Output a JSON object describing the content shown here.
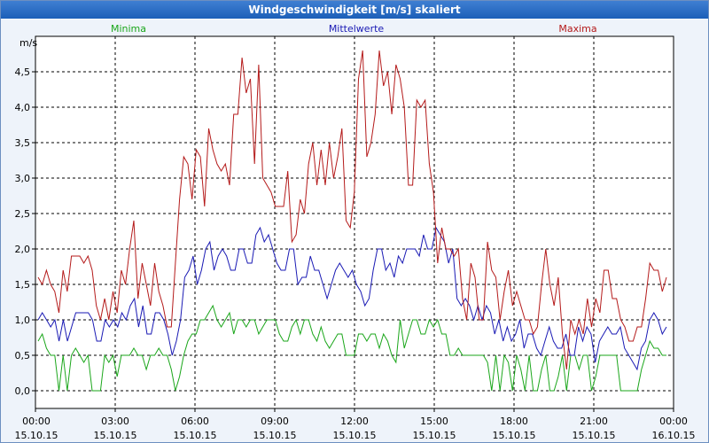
{
  "window": {
    "title": "Windgeschwindigkeit [m/s] skaliert"
  },
  "chart_data": {
    "type": "line",
    "title": "Windgeschwindigkeit [m/s] skaliert",
    "ylabel": "m/s",
    "ylim": [
      -0.25,
      5.0
    ],
    "xlim_hours": [
      0,
      24
    ],
    "y_ticks": [
      "0,0",
      "0,5",
      "1,0",
      "1,5",
      "2,0",
      "2,5",
      "3,0",
      "3,5",
      "4,0",
      "4,5"
    ],
    "x_ticks": [
      {
        "time": "00:00",
        "date": "15.10.15"
      },
      {
        "time": "03:00",
        "date": "15.10.15"
      },
      {
        "time": "06:00",
        "date": "15.10.15"
      },
      {
        "time": "09:00",
        "date": "15.10.15"
      },
      {
        "time": "12:00",
        "date": "15.10.15"
      },
      {
        "time": "15:00",
        "date": "15.10.15"
      },
      {
        "time": "18:00",
        "date": "15.10.15"
      },
      {
        "time": "21:00",
        "date": "15.10.15"
      },
      {
        "time": "00:00",
        "date": "16.10.15"
      }
    ],
    "grid": true,
    "series": [
      {
        "name": "Minima",
        "color": "#1aa61a",
        "values": [
          0.7,
          0.8,
          0.6,
          0.5,
          0.5,
          0.0,
          0.5,
          0.0,
          0.5,
          0.6,
          0.5,
          0.4,
          0.5,
          0.0,
          0.0,
          0.0,
          0.5,
          0.4,
          0.5,
          0.2,
          0.5,
          0.5,
          0.5,
          0.6,
          0.5,
          0.5,
          0.3,
          0.5,
          0.5,
          0.6,
          0.5,
          0.5,
          0.3,
          0.0,
          0.2,
          0.5,
          0.7,
          0.8,
          0.8,
          1.0,
          1.0,
          1.1,
          1.2,
          1.0,
          0.9,
          1.0,
          1.1,
          0.8,
          1.0,
          1.0,
          0.9,
          1.0,
          1.0,
          0.8,
          0.9,
          1.0,
          1.0,
          1.0,
          0.8,
          0.7,
          0.7,
          0.9,
          1.0,
          0.8,
          1.0,
          1.0,
          0.8,
          0.7,
          0.9,
          0.7,
          0.6,
          0.7,
          0.8,
          0.8,
          0.5,
          0.5,
          0.5,
          0.8,
          0.8,
          0.7,
          0.8,
          0.8,
          0.6,
          0.8,
          0.7,
          0.5,
          0.4,
          1.0,
          0.6,
          0.8,
          1.0,
          1.0,
          0.8,
          0.8,
          1.0,
          0.9,
          1.0,
          0.8,
          0.8,
          0.5,
          0.5,
          0.6,
          0.5,
          0.5,
          0.5,
          0.5,
          0.5,
          0.5,
          0.4,
          0.0,
          0.5,
          0.0,
          0.5,
          0.4,
          0.0,
          0.5,
          0.3,
          0.0,
          0.5,
          0.0,
          0.0,
          0.3,
          0.5,
          0.0,
          0.0,
          0.2,
          0.5,
          0.0,
          0.5,
          0.5,
          0.3,
          0.5,
          0.5,
          0.0,
          0.2,
          0.5,
          0.5,
          0.5,
          0.5,
          0.5,
          0.0,
          0.0,
          0.0,
          0.0,
          0.0,
          0.3,
          0.5,
          0.7,
          0.6,
          0.6,
          0.5,
          0.5
        ]
      },
      {
        "name": "Mittelwerte",
        "color": "#1a1ab4",
        "values": [
          1.0,
          1.1,
          1.0,
          0.9,
          1.0,
          0.7,
          1.0,
          0.7,
          0.9,
          1.1,
          1.1,
          1.1,
          1.1,
          1.0,
          0.7,
          0.7,
          1.0,
          0.9,
          1.0,
          0.9,
          1.1,
          1.0,
          1.2,
          1.3,
          0.9,
          1.2,
          0.8,
          0.8,
          1.1,
          1.1,
          1.0,
          0.8,
          0.5,
          0.7,
          1.0,
          1.6,
          1.7,
          1.9,
          1.5,
          1.7,
          2.0,
          2.1,
          1.7,
          1.9,
          2.0,
          1.9,
          1.7,
          1.7,
          2.0,
          2.0,
          1.8,
          1.8,
          2.2,
          2.3,
          2.1,
          2.2,
          2.0,
          1.8,
          1.7,
          1.7,
          2.0,
          2.0,
          1.5,
          1.6,
          1.6,
          1.9,
          1.7,
          1.7,
          1.5,
          1.3,
          1.5,
          1.7,
          1.8,
          1.7,
          1.6,
          1.7,
          1.5,
          1.4,
          1.2,
          1.3,
          1.7,
          2.0,
          2.0,
          1.7,
          1.8,
          1.6,
          1.9,
          1.8,
          2.0,
          2.0,
          2.0,
          1.9,
          2.2,
          2.0,
          2.0,
          2.3,
          2.2,
          2.1,
          1.8,
          2.0,
          1.3,
          1.2,
          1.3,
          1.2,
          1.0,
          1.2,
          1.0,
          1.2,
          1.1,
          0.8,
          1.0,
          0.7,
          0.9,
          0.7,
          0.8,
          1.0,
          0.6,
          0.8,
          0.8,
          0.6,
          0.5,
          0.7,
          0.9,
          0.7,
          0.6,
          0.6,
          0.8,
          0.5,
          0.5,
          0.9,
          0.7,
          0.9,
          0.8,
          0.4,
          0.7,
          0.8,
          0.9,
          0.8,
          0.8,
          0.9,
          0.6,
          0.5,
          0.4,
          0.3,
          0.6,
          0.7,
          1.0,
          1.1,
          1.0,
          0.8,
          0.9
        ]
      },
      {
        "name": "Maxima",
        "color": "#b41a1a",
        "values": [
          1.6,
          1.5,
          1.7,
          1.5,
          1.4,
          1.1,
          1.7,
          1.4,
          1.9,
          1.9,
          1.9,
          1.8,
          1.9,
          1.7,
          1.2,
          1.0,
          1.3,
          1.0,
          1.4,
          1.1,
          1.7,
          1.5,
          2.0,
          2.4,
          1.3,
          1.8,
          1.5,
          1.2,
          1.8,
          1.4,
          1.2,
          0.9,
          0.9,
          1.8,
          2.7,
          3.3,
          3.2,
          2.7,
          3.4,
          3.3,
          2.6,
          3.7,
          3.4,
          3.2,
          3.1,
          3.2,
          2.9,
          3.9,
          3.9,
          4.7,
          4.2,
          4.4,
          3.2,
          4.6,
          3.0,
          2.9,
          2.8,
          2.6,
          2.6,
          2.6,
          3.1,
          2.1,
          2.2,
          2.7,
          2.5,
          3.2,
          3.5,
          2.9,
          3.4,
          2.9,
          3.5,
          3.0,
          3.3,
          3.7,
          2.4,
          2.3,
          2.8,
          4.4,
          4.8,
          3.3,
          3.5,
          3.9,
          4.8,
          4.3,
          4.5,
          3.9,
          4.6,
          4.4,
          4.0,
          2.9,
          2.9,
          4.1,
          4.0,
          4.1,
          3.2,
          2.8,
          1.8,
          2.3,
          2.0,
          2.0,
          1.9,
          2.0,
          1.3,
          1.0,
          1.8,
          1.6,
          1.0,
          1.0,
          2.1,
          1.7,
          1.6,
          1.0,
          1.4,
          1.7,
          1.2,
          1.4,
          1.2,
          1.0,
          1.0,
          0.8,
          0.9,
          1.5,
          2.0,
          1.5,
          1.2,
          1.6,
          0.8,
          0.3,
          1.0,
          0.8,
          1.0,
          0.8,
          1.3,
          0.9,
          1.3,
          1.1,
          1.7,
          1.7,
          1.3,
          1.3,
          1.0,
          0.9,
          0.7,
          0.7,
          0.9,
          0.9,
          1.3,
          1.8,
          1.7,
          1.7,
          1.4,
          1.6
        ]
      }
    ]
  }
}
